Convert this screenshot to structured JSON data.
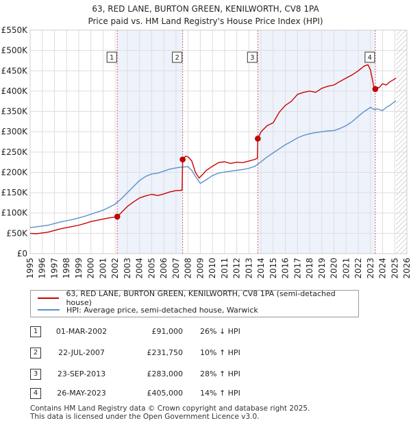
{
  "title_line1": "63, RED LANE, BURTON GREEN, KENILWORTH, CV8 1PA",
  "title_line2": "Price paid vs. HM Land Registry's House Price Index (HPI)",
  "colors": {
    "property": "#cc0000",
    "hpi": "#5b8fc9",
    "sale_band": "#eef2fb",
    "marker_line": "#cc3344"
  },
  "chart_data": {
    "type": "line",
    "title": "Price paid vs. HM Land Registry's House Price Index (HPI)",
    "xlabel": "",
    "ylabel": "",
    "xlim": [
      1995,
      2026
    ],
    "ylim": [
      0,
      550000
    ],
    "x_ticks": [
      "1995",
      "1996",
      "1997",
      "1998",
      "1999",
      "2000",
      "2001",
      "2002",
      "2003",
      "2004",
      "2005",
      "2006",
      "2007",
      "2008",
      "2009",
      "2010",
      "2011",
      "2012",
      "2013",
      "2014",
      "2015",
      "2016",
      "2017",
      "2018",
      "2019",
      "2020",
      "2021",
      "2022",
      "2023",
      "2024",
      "2025",
      "2026"
    ],
    "y_ticks": [
      {
        "value": 0,
        "label": "£0"
      },
      {
        "value": 50000,
        "label": "£50K"
      },
      {
        "value": 100000,
        "label": "£100K"
      },
      {
        "value": 150000,
        "label": "£150K"
      },
      {
        "value": 200000,
        "label": "£200K"
      },
      {
        "value": 250000,
        "label": "£250K"
      },
      {
        "value": 300000,
        "label": "£300K"
      },
      {
        "value": 350000,
        "label": "£350K"
      },
      {
        "value": 400000,
        "label": "£400K"
      },
      {
        "value": 450000,
        "label": "£450K"
      },
      {
        "value": 500000,
        "label": "£500K"
      },
      {
        "value": 550000,
        "label": "£550K"
      }
    ],
    "grid": true,
    "future_hatch_from": 2025.1,
    "series": [
      {
        "name": "63, RED LANE, BURTON GREEN, KENILWORTH, CV8 1PA (semi-detached house)",
        "x": [
          1995.0,
          1995.5,
          1996.0,
          1996.5,
          1997.0,
          1997.5,
          1998.0,
          1998.5,
          1999.0,
          1999.5,
          2000.0,
          2000.5,
          2001.0,
          2001.5,
          2002.0,
          2002.17,
          2002.5,
          2003.0,
          2003.5,
          2004.0,
          2004.5,
          2005.0,
          2005.5,
          2006.0,
          2006.5,
          2007.0,
          2007.5,
          2007.55,
          2007.8,
          2008.0,
          2008.3,
          2008.6,
          2008.9,
          2009.2,
          2009.5,
          2010.0,
          2010.5,
          2011.0,
          2011.5,
          2012.0,
          2012.5,
          2013.0,
          2013.5,
          2013.7,
          2013.73,
          2014.0,
          2014.5,
          2015.0,
          2015.5,
          2016.0,
          2016.5,
          2017.0,
          2017.5,
          2018.0,
          2018.5,
          2019.0,
          2019.5,
          2020.0,
          2020.5,
          2021.0,
          2021.5,
          2022.0,
          2022.5,
          2022.8,
          2023.0,
          2023.3,
          2023.4,
          2023.5,
          2023.7,
          2024.0,
          2024.3,
          2024.6,
          2024.9,
          2025.1
        ],
        "y": [
          50000,
          49000,
          51000,
          53000,
          57000,
          61000,
          64000,
          67000,
          70000,
          74000,
          79000,
          82000,
          85000,
          88000,
          90000,
          91000,
          101000,
          116000,
          127000,
          137000,
          142000,
          146000,
          143000,
          147000,
          152000,
          155000,
          156000,
          231750,
          240000,
          238000,
          228000,
          200000,
          186000,
          195000,
          205000,
          215000,
          224000,
          226000,
          222000,
          225000,
          224000,
          228000,
          232000,
          235000,
          283000,
          300000,
          315000,
          322000,
          348000,
          365000,
          375000,
          392000,
          397000,
          400000,
          397000,
          407000,
          412000,
          415000,
          424000,
          432000,
          440000,
          450000,
          462000,
          465000,
          452000,
          408000,
          405000,
          410000,
          408000,
          418000,
          415000,
          423000,
          428000,
          432000
        ]
      },
      {
        "name": "HPI: Average price, semi-detached house, Warwick",
        "x": [
          1995.0,
          1995.5,
          1996.0,
          1996.5,
          1997.0,
          1997.5,
          1998.0,
          1998.5,
          1999.0,
          1999.5,
          2000.0,
          2000.5,
          2001.0,
          2001.5,
          2002.0,
          2002.5,
          2003.0,
          2003.5,
          2004.0,
          2004.5,
          2005.0,
          2005.5,
          2006.0,
          2006.5,
          2007.0,
          2007.5,
          2008.0,
          2008.3,
          2008.6,
          2009.0,
          2009.3,
          2009.7,
          2010.0,
          2010.5,
          2011.0,
          2011.5,
          2012.0,
          2012.5,
          2013.0,
          2013.5,
          2014.0,
          2014.5,
          2015.0,
          2015.5,
          2016.0,
          2016.5,
          2017.0,
          2017.5,
          2018.0,
          2018.5,
          2019.0,
          2019.5,
          2020.0,
          2020.5,
          2021.0,
          2021.5,
          2022.0,
          2022.5,
          2022.8,
          2023.0,
          2023.3,
          2023.6,
          2024.0,
          2024.3,
          2024.6,
          2024.9,
          2025.1
        ],
        "y": [
          64000,
          66000,
          68000,
          70000,
          74000,
          78000,
          81000,
          84000,
          88000,
          92000,
          97000,
          102000,
          107000,
          114000,
          122000,
          135000,
          150000,
          165000,
          180000,
          190000,
          196000,
          198000,
          203000,
          208000,
          211000,
          213000,
          214000,
          205000,
          190000,
          173000,
          178000,
          186000,
          192000,
          198000,
          201000,
          203000,
          205000,
          207000,
          210000,
          215000,
          226000,
          238000,
          248000,
          258000,
          268000,
          276000,
          285000,
          291000,
          295000,
          298000,
          300000,
          302000,
          303000,
          308000,
          315000,
          325000,
          338000,
          350000,
          356000,
          360000,
          355000,
          356000,
          352000,
          360000,
          365000,
          372000,
          376000
        ]
      }
    ],
    "sales": [
      {
        "num": "1",
        "year": 2002.17,
        "value": 91000
      },
      {
        "num": "2",
        "year": 2007.55,
        "value": 231750
      },
      {
        "num": "3",
        "year": 2013.73,
        "value": 283000
      },
      {
        "num": "4",
        "year": 2023.4,
        "value": 405000
      }
    ]
  },
  "legend": {
    "property_label": "63, RED LANE, BURTON GREEN, KENILWORTH, CV8 1PA (semi-detached house)",
    "hpi_label": "HPI: Average price, semi-detached house, Warwick"
  },
  "sales_table": [
    {
      "num": "1",
      "date": "01-MAR-2002",
      "price": "£91,000",
      "hpi": "26% ↓ HPI"
    },
    {
      "num": "2",
      "date": "22-JUL-2007",
      "price": "£231,750",
      "hpi": "10% ↑ HPI"
    },
    {
      "num": "3",
      "date": "23-SEP-2013",
      "price": "£283,000",
      "hpi": "28% ↑ HPI"
    },
    {
      "num": "4",
      "date": "26-MAY-2023",
      "price": "£405,000",
      "hpi": "14% ↑ HPI"
    }
  ],
  "footer_line1": "Contains HM Land Registry data © Crown copyright and database right 2025.",
  "footer_line2": "This data is licensed under the Open Government Licence v3.0."
}
